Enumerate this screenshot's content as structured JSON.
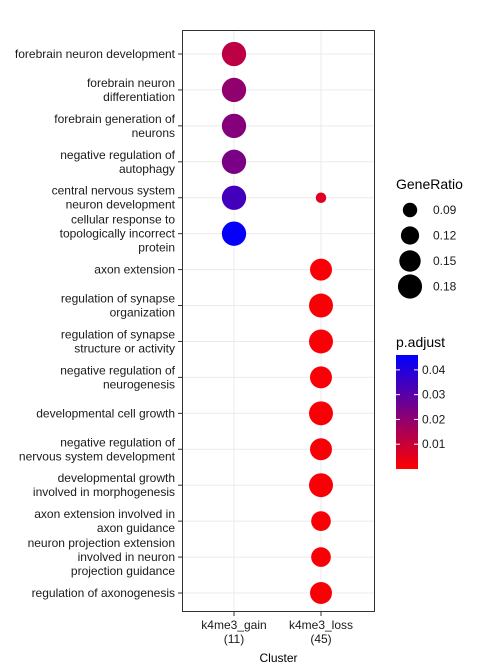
{
  "chart_data": {
    "type": "scatter",
    "xlabel": "Cluster",
    "clusters": [
      {
        "label": "k4me3_gain",
        "count": "(11)"
      },
      {
        "label": "k4me3_loss",
        "count": "(45)"
      }
    ],
    "terms": [
      {
        "label": "forebrain neuron development",
        "lines": [
          "forebrain neuron development"
        ]
      },
      {
        "label": "forebrain neuron differentiation",
        "lines": [
          "forebrain neuron",
          "differentiation"
        ]
      },
      {
        "label": "forebrain generation of neurons",
        "lines": [
          "forebrain generation of",
          "neurons"
        ]
      },
      {
        "label": "negative regulation of autophagy",
        "lines": [
          "negative regulation of",
          "autophagy"
        ]
      },
      {
        "label": "central nervous system neuron development",
        "lines": [
          "central nervous system",
          "neuron development"
        ]
      },
      {
        "label": "cellular response to topologically incorrect protein",
        "lines": [
          "cellular response to",
          "topologically incorrect",
          "protein"
        ]
      },
      {
        "label": "axon extension",
        "lines": [
          "axon extension"
        ]
      },
      {
        "label": "regulation of synapse organization",
        "lines": [
          "regulation of synapse",
          "organization"
        ]
      },
      {
        "label": "regulation of synapse structure or activity",
        "lines": [
          "regulation of synapse",
          "structure or activity"
        ]
      },
      {
        "label": "negative regulation of neurogenesis",
        "lines": [
          "negative regulation of",
          "neurogenesis"
        ]
      },
      {
        "label": "developmental cell growth",
        "lines": [
          "developmental cell growth"
        ]
      },
      {
        "label": "negative regulation of nervous system development",
        "lines": [
          "negative regulation of",
          "nervous system development"
        ]
      },
      {
        "label": "developmental growth involved in morphogenesis",
        "lines": [
          "developmental growth",
          "involved in morphogenesis"
        ]
      },
      {
        "label": "axon extension involved in axon guidance",
        "lines": [
          "axon extension involved in",
          "axon guidance"
        ]
      },
      {
        "label": "neuron projection extension involved in neuron projection guidance",
        "lines": [
          "neuron projection extension",
          "involved in neuron",
          "projection guidance"
        ]
      },
      {
        "label": "regulation of axonogenesis",
        "lines": [
          "regulation of axonogenesis"
        ]
      }
    ],
    "points": [
      {
        "cluster": "k4me3_gain",
        "term": "forebrain neuron development",
        "gene_ratio": 0.182,
        "p_adjust": 0.012
      },
      {
        "cluster": "k4me3_gain",
        "term": "forebrain neuron differentiation",
        "gene_ratio": 0.182,
        "p_adjust": 0.02
      },
      {
        "cluster": "k4me3_gain",
        "term": "forebrain generation of neurons",
        "gene_ratio": 0.182,
        "p_adjust": 0.022
      },
      {
        "cluster": "k4me3_gain",
        "term": "negative regulation of autophagy",
        "gene_ratio": 0.182,
        "p_adjust": 0.024
      },
      {
        "cluster": "k4me3_gain",
        "term": "central nervous system neuron development",
        "gene_ratio": 0.182,
        "p_adjust": 0.034
      },
      {
        "cluster": "k4me3_gain",
        "term": "cellular response to topologically incorrect protein",
        "gene_ratio": 0.182,
        "p_adjust": 0.045
      },
      {
        "cluster": "k4me3_loss",
        "term": "central nervous system neuron development",
        "gene_ratio": 0.067,
        "p_adjust": 0.006
      },
      {
        "cluster": "k4me3_loss",
        "term": "axon extension",
        "gene_ratio": 0.156,
        "p_adjust": 0.001
      },
      {
        "cluster": "k4me3_loss",
        "term": "regulation of synapse organization",
        "gene_ratio": 0.178,
        "p_adjust": 0.001
      },
      {
        "cluster": "k4me3_loss",
        "term": "regulation of synapse structure or activity",
        "gene_ratio": 0.178,
        "p_adjust": 0.001
      },
      {
        "cluster": "k4me3_loss",
        "term": "negative regulation of neurogenesis",
        "gene_ratio": 0.156,
        "p_adjust": 0.001
      },
      {
        "cluster": "k4me3_loss",
        "term": "developmental cell growth",
        "gene_ratio": 0.178,
        "p_adjust": 0.001
      },
      {
        "cluster": "k4me3_loss",
        "term": "negative regulation of nervous system development",
        "gene_ratio": 0.156,
        "p_adjust": 0.001
      },
      {
        "cluster": "k4me3_loss",
        "term": "developmental growth involved in morphogenesis",
        "gene_ratio": 0.178,
        "p_adjust": 0.001
      },
      {
        "cluster": "k4me3_loss",
        "term": "axon extension involved in axon guidance",
        "gene_ratio": 0.133,
        "p_adjust": 0.001
      },
      {
        "cluster": "k4me3_loss",
        "term": "neuron projection extension involved in neuron projection guidance",
        "gene_ratio": 0.133,
        "p_adjust": 0.001
      },
      {
        "cluster": "k4me3_loss",
        "term": "regulation of axonogenesis",
        "gene_ratio": 0.156,
        "p_adjust": 0.001
      }
    ],
    "size_legend": {
      "title": "GeneRatio",
      "breaks": [
        0.09,
        0.12,
        0.15,
        0.18
      ],
      "labels": [
        "0.09",
        "0.12",
        "0.15",
        "0.18"
      ]
    },
    "color_legend": {
      "title": "p.adjust",
      "range": [
        0.0,
        0.046
      ],
      "breaks": [
        0.01,
        0.02,
        0.03,
        0.04
      ],
      "labels": [
        "0.01",
        "0.02",
        "0.03",
        "0.04"
      ],
      "low_color": "#ff0000",
      "high_color": "#0000ff"
    },
    "size_range": [
      0.06,
      0.19
    ],
    "grid": true,
    "legend_position": "right"
  }
}
